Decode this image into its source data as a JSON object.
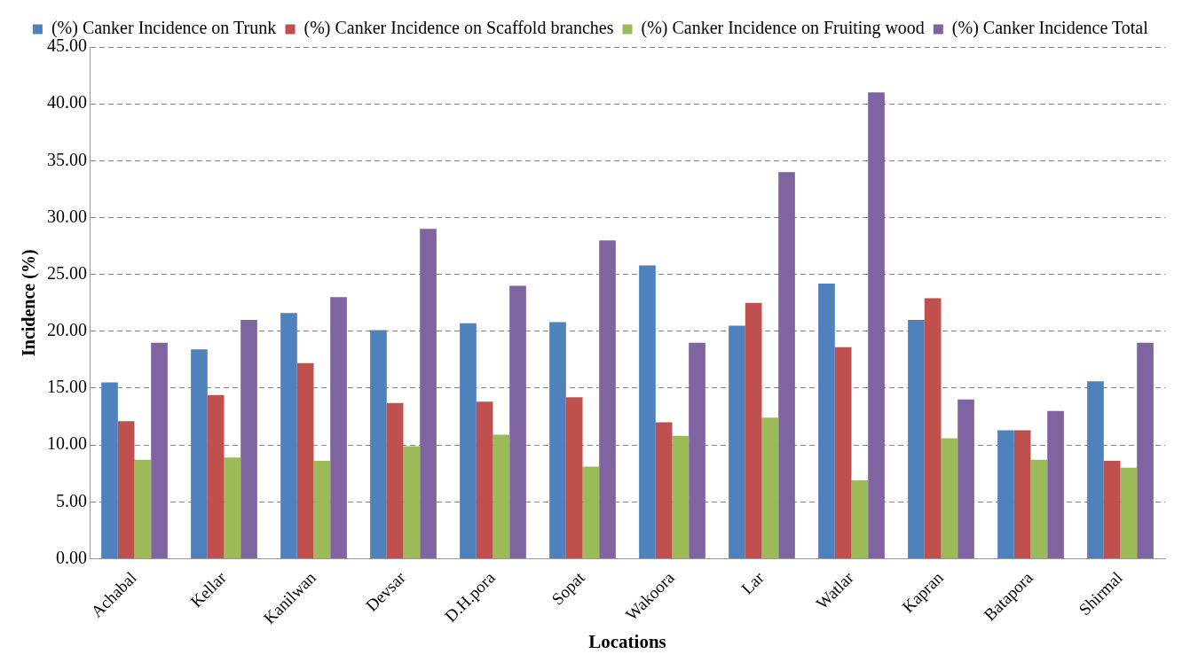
{
  "chart_data": {
    "type": "bar",
    "xlabel": "Locations",
    "ylabel": "Incidence (%)",
    "categories": [
      "Achabal",
      "Kellar",
      "Kanilwan",
      "Devsar",
      "D.H.pora",
      "Sopat",
      "Wakoora",
      "Lar",
      "Watlar",
      "Kapran",
      "Batapora",
      "Shirmal"
    ],
    "series": [
      {
        "name": "(%) Canker Incidence on Trunk",
        "color": "#4f81bd",
        "values": [
          15.5,
          18.4,
          21.6,
          20.1,
          20.7,
          20.8,
          25.8,
          20.5,
          24.2,
          21.0,
          11.3,
          15.6
        ]
      },
      {
        "name": "(%) Canker Incidence on Scaffold branches",
        "color": "#c0504d",
        "values": [
          12.1,
          14.4,
          17.2,
          13.7,
          13.8,
          14.2,
          12.0,
          22.5,
          18.6,
          22.9,
          11.3,
          8.6
        ]
      },
      {
        "name": "(%) Canker Incidence on Fruiting wood",
        "color": "#9bbb59",
        "values": [
          8.7,
          8.9,
          8.6,
          9.9,
          10.9,
          8.1,
          10.8,
          12.4,
          6.9,
          10.6,
          8.7,
          8.0
        ]
      },
      {
        "name": "(%) Canker Incidence Total",
        "color": "#8064a2",
        "values": [
          19,
          21,
          23,
          29,
          24,
          28,
          19,
          34,
          41,
          14,
          13,
          19
        ]
      }
    ],
    "ylim": [
      0,
      45
    ],
    "yticks": [
      {
        "value": 0,
        "label": "0.00"
      },
      {
        "value": 5,
        "label": "5.00"
      },
      {
        "value": 10,
        "label": "10.00"
      },
      {
        "value": 15,
        "label": "15.00"
      },
      {
        "value": 20,
        "label": "20.00"
      },
      {
        "value": 25,
        "label": "25.00"
      },
      {
        "value": 30,
        "label": "30.00"
      },
      {
        "value": 35,
        "label": "35.00"
      },
      {
        "value": 40,
        "label": "40.00"
      },
      {
        "value": 45,
        "label": "45.00"
      }
    ],
    "grid": "y",
    "legend": "top"
  }
}
